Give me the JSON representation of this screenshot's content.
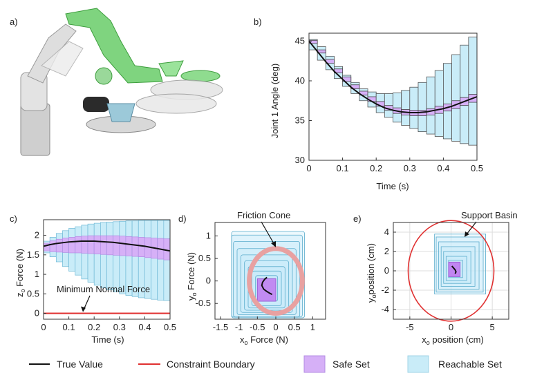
{
  "chart_data": [
    {
      "panel": "a)",
      "type": "image",
      "description_label": "a)"
    },
    {
      "panel": "b)",
      "type": "area",
      "xlabel": "Time (s)",
      "ylabel": "Joint 1 Angle (deg)",
      "xlim": [
        0,
        0.5
      ],
      "ylim": [
        30,
        46
      ],
      "xticks": [
        "0",
        "0.1",
        "0.2",
        "0.3",
        "0.4",
        "0.5"
      ],
      "yticks": [
        "30",
        "35",
        "40",
        "45"
      ],
      "time": [
        0,
        0.025,
        0.05,
        0.075,
        0.1,
        0.125,
        0.15,
        0.175,
        0.2,
        0.225,
        0.25,
        0.275,
        0.3,
        0.325,
        0.35,
        0.375,
        0.4,
        0.425,
        0.45,
        0.475,
        0.5
      ],
      "true_value": [
        45.0,
        43.7,
        42.4,
        41.2,
        40.2,
        39.2,
        38.4,
        37.7,
        37.1,
        36.6,
        36.3,
        36.1,
        36.0,
        36.0,
        36.1,
        36.3,
        36.5,
        36.8,
        37.2,
        37.6,
        38.0
      ],
      "reachable_upper": [
        45.2,
        44.3,
        43.1,
        41.8,
        40.7,
        39.8,
        39.0,
        38.6,
        38.4,
        38.4,
        38.5,
        38.8,
        39.2,
        39.8,
        40.5,
        41.3,
        42.2,
        43.3,
        44.5,
        45.5
      ],
      "reachable_lower": [
        43.9,
        42.6,
        41.4,
        40.3,
        39.3,
        38.4,
        37.5,
        36.7,
        36.0,
        35.4,
        34.8,
        34.4,
        34.0,
        33.6,
        33.3,
        33.0,
        32.7,
        32.4,
        32.1,
        31.9
      ],
      "safe_upper": [
        45.1,
        43.9,
        42.7,
        41.5,
        40.5,
        39.5,
        38.7,
        38.0,
        37.4,
        36.9,
        36.6,
        36.4,
        36.3,
        36.3,
        36.5,
        36.8,
        37.1,
        37.5,
        37.9,
        38.3
      ],
      "safe_lower": [
        44.7,
        43.5,
        42.2,
        41.0,
        39.9,
        39.0,
        38.2,
        37.4,
        36.8,
        36.3,
        35.9,
        35.7,
        35.6,
        35.6,
        35.7,
        35.9,
        36.2,
        36.5,
        36.9,
        37.3
      ]
    },
    {
      "panel": "c)",
      "type": "area",
      "xlabel": "Time (s)",
      "ylabel": "z_o Force (N)",
      "xlim": [
        0,
        0.5
      ],
      "ylim": [
        -0.15,
        2.4
      ],
      "xticks": [
        "0",
        "0.1",
        "0.2",
        "0.3",
        "0.4",
        "0.5"
      ],
      "yticks": [
        "0",
        "0.5",
        "1",
        "1.5",
        "2"
      ],
      "annotation": "Minimum Normal Force",
      "constraint_value": 0,
      "time": [
        0,
        0.025,
        0.05,
        0.075,
        0.1,
        0.125,
        0.15,
        0.175,
        0.2,
        0.225,
        0.25,
        0.275,
        0.3,
        0.325,
        0.35,
        0.375,
        0.4,
        0.425,
        0.45,
        0.475,
        0.5
      ],
      "true_value": [
        1.72,
        1.76,
        1.79,
        1.81,
        1.83,
        1.84,
        1.85,
        1.85,
        1.85,
        1.84,
        1.83,
        1.82,
        1.8,
        1.78,
        1.76,
        1.74,
        1.72,
        1.69,
        1.66,
        1.63,
        1.6
      ],
      "reachable_upper": [
        1.85,
        1.95,
        2.05,
        2.12,
        2.18,
        2.22,
        2.26,
        2.29,
        2.31,
        2.33,
        2.34,
        2.35,
        2.36,
        2.37,
        2.37,
        2.38,
        2.38,
        2.38,
        2.38,
        2.38
      ],
      "reachable_lower": [
        1.55,
        1.45,
        1.32,
        1.2,
        1.08,
        0.98,
        0.88,
        0.8,
        0.72,
        0.66,
        0.6,
        0.55,
        0.5,
        0.46,
        0.43,
        0.4,
        0.38,
        0.36,
        0.34,
        0.33
      ],
      "safe_upper": [
        1.8,
        1.86,
        1.9,
        1.93,
        1.95,
        1.97,
        1.98,
        1.99,
        1.99,
        1.99,
        1.99,
        1.99,
        1.98,
        1.97,
        1.96,
        1.95,
        1.94,
        1.93,
        1.92,
        1.91
      ],
      "safe_lower": [
        1.6,
        1.58,
        1.57,
        1.56,
        1.55,
        1.55,
        1.54,
        1.53,
        1.52,
        1.51,
        1.5,
        1.49,
        1.48,
        1.47,
        1.46,
        1.45,
        1.43,
        1.41,
        1.39,
        1.37
      ]
    },
    {
      "panel": "d)",
      "type": "scatter",
      "xlabel": "x_o Force (N)",
      "ylabel": "y_o Force (N)",
      "xlim": [
        -1.65,
        1.35
      ],
      "ylim": [
        -0.85,
        1.3
      ],
      "xticks": [
        "-1.5",
        "-1",
        "-0.5",
        "0",
        "0.5",
        "1"
      ],
      "yticks": [
        "-0.5",
        "0",
        "0.5",
        "1"
      ],
      "annotation": "Friction Cone",
      "friction_cone": {
        "cx": 0.0,
        "cy": 0.0,
        "r": 0.72
      },
      "reachable_sets": [
        {
          "x0": -0.55,
          "x1": 0.05,
          "y0": -0.45,
          "y1": 0.12
        },
        {
          "x0": -0.65,
          "x1": 0.15,
          "y0": -0.55,
          "y1": 0.22
        },
        {
          "x0": -0.75,
          "x1": 0.25,
          "y0": -0.6,
          "y1": 0.32
        },
        {
          "x0": -0.85,
          "x1": 0.35,
          "y0": -0.65,
          "y1": 0.45
        },
        {
          "x0": -0.95,
          "x1": 0.45,
          "y0": -0.7,
          "y1": 0.58
        },
        {
          "x0": -1.05,
          "x1": 0.55,
          "y0": -0.75,
          "y1": 0.72
        },
        {
          "x0": -1.15,
          "x1": 0.65,
          "y0": -0.8,
          "y1": 0.88
        },
        {
          "x0": -1.2,
          "x1": 0.72,
          "y0": -0.8,
          "y1": 1.02
        },
        {
          "x0": -1.2,
          "x1": 0.78,
          "y0": -0.82,
          "y1": 1.1
        }
      ],
      "safe_set": {
        "x0": -0.5,
        "x1": 0.0,
        "y0": -0.45,
        "y1": 0.05
      },
      "true_x": [
        -0.1,
        -0.17,
        -0.25,
        -0.33,
        -0.38,
        -0.36,
        -0.3,
        -0.24
      ],
      "true_y": [
        -0.3,
        -0.27,
        -0.23,
        -0.18,
        -0.1,
        -0.03,
        0.04,
        0.08
      ]
    },
    {
      "panel": "e)",
      "type": "scatter",
      "xlabel": "x_o position (cm)",
      "ylabel": "y_o position (cm)",
      "xlim": [
        -7,
        7
      ],
      "ylim": [
        -5,
        5
      ],
      "xticks": [
        "-5",
        "0",
        "5"
      ],
      "yticks": [
        "-4",
        "-2",
        "0",
        "2",
        "4"
      ],
      "annotation": "Support Basin",
      "support_basin": {
        "cx": 0.0,
        "cy": 0.0,
        "r": 5.2
      },
      "reachable_sets": [
        {
          "x0": -0.3,
          "x1": 1.4,
          "y0": -0.7,
          "y1": 1.1
        },
        {
          "x0": -0.6,
          "x1": 1.9,
          "y0": -1.0,
          "y1": 1.5
        },
        {
          "x0": -0.9,
          "x1": 2.4,
          "y0": -1.3,
          "y1": 2.0
        },
        {
          "x0": -1.2,
          "x1": 2.9,
          "y0": -1.6,
          "y1": 2.5
        },
        {
          "x0": -1.5,
          "x1": 3.4,
          "y0": -1.9,
          "y1": 3.0
        },
        {
          "x0": -1.8,
          "x1": 3.9,
          "y0": -2.2,
          "y1": 3.5
        },
        {
          "x0": -2.0,
          "x1": 4.2,
          "y0": -2.4,
          "y1": 3.8
        }
      ],
      "safe_set": {
        "x0": -0.3,
        "x1": 1.1,
        "y0": -0.6,
        "y1": 0.9
      },
      "true_x": [
        0.1,
        0.3,
        0.5,
        0.6,
        0.5
      ],
      "true_y": [
        0.5,
        0.3,
        0.1,
        -0.1,
        -0.3
      ]
    }
  ],
  "legend": {
    "true_value": "True Value",
    "constraint_boundary": "Constraint Boundary",
    "safe_set": "Safe Set",
    "reachable_set": "Reachable Set"
  },
  "colors": {
    "true_value": "#111111",
    "constraint": "#e03030",
    "safe_fill": "#d6b0f7",
    "safe_stroke": "#9b5fd6",
    "reach_fill": "#c9ecf8",
    "reach_stroke": "#5aaccc",
    "cone": "#e8a1a1"
  }
}
